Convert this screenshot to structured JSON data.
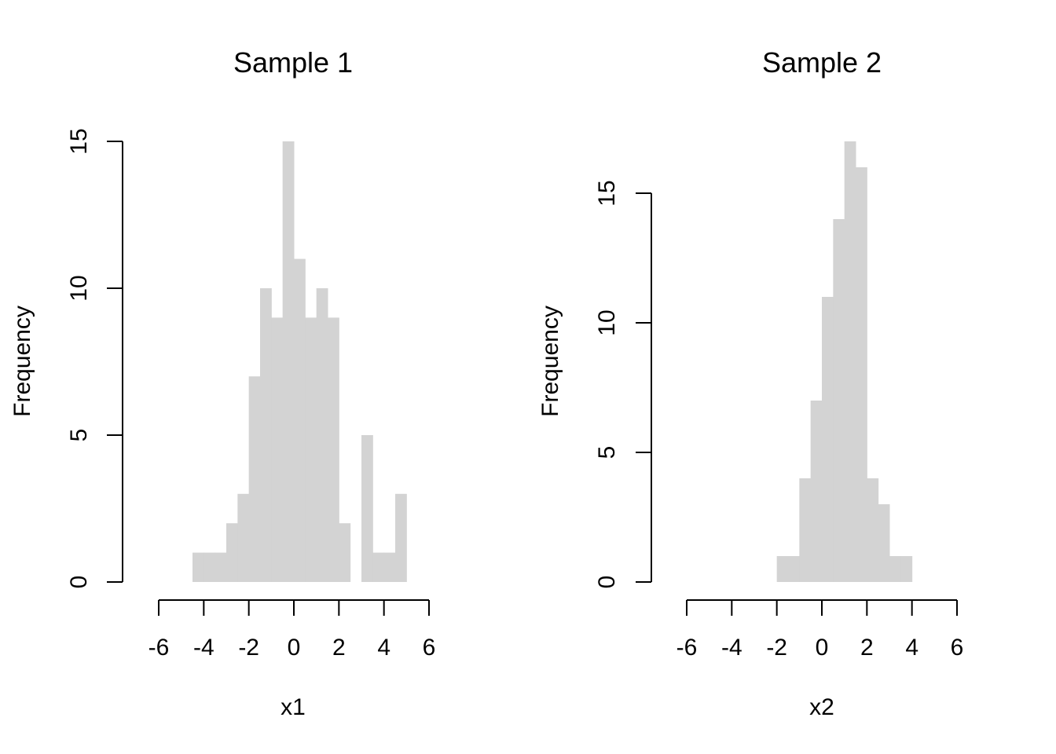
{
  "chart_data": [
    {
      "type": "bar",
      "title": "Sample 1",
      "xlabel": "x1",
      "ylabel": "Frequency",
      "bin_width": 0.5,
      "bins_start": [
        -4.5,
        -4,
        -3.5,
        -3,
        -2.5,
        -2,
        -1.5,
        -1,
        -0.5,
        0,
        0.5,
        1,
        1.5,
        2,
        2.5,
        3,
        3.5,
        4,
        4.5
      ],
      "values": [
        1,
        1,
        1,
        2,
        3,
        7,
        10,
        9,
        15,
        11,
        9,
        10,
        9,
        2,
        0,
        5,
        1,
        1,
        3
      ],
      "xlim": [
        -6,
        6
      ],
      "ylim": [
        0,
        15
      ],
      "xticks": [
        -6,
        -4,
        -2,
        0,
        2,
        4,
        6
      ],
      "yticks": [
        0,
        5,
        10,
        15
      ],
      "bar_color": "#d3d3d3",
      "grid": false
    },
    {
      "type": "bar",
      "title": "Sample 2",
      "xlabel": "x2",
      "ylabel": "Frequency",
      "bin_width": 0.5,
      "bins_start": [
        -2,
        -1.5,
        -1,
        -0.5,
        0,
        0.5,
        1,
        1.5,
        2,
        2.5,
        3,
        3.5
      ],
      "values": [
        1,
        1,
        4,
        7,
        11,
        14,
        17,
        16,
        4,
        3,
        1,
        1
      ],
      "xlim": [
        -6,
        6
      ],
      "ylim": [
        0,
        17
      ],
      "xticks": [
        -6,
        -4,
        -2,
        0,
        2,
        4,
        6
      ],
      "yticks": [
        0,
        5,
        10,
        15
      ],
      "bar_color": "#d3d3d3",
      "grid": false
    }
  ]
}
